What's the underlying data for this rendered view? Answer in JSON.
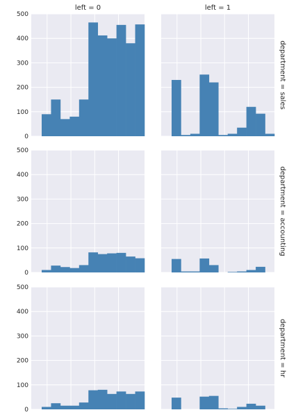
{
  "chart_data": {
    "type": "histogram-facet-grid",
    "column_titles": [
      "left = 0",
      "left = 1"
    ],
    "row_titles": [
      "department = sales",
      "department = accounting",
      "department = hr"
    ],
    "y_ticks": [
      0,
      100,
      200,
      300,
      400,
      500
    ],
    "ylim": [
      0,
      500
    ],
    "shared_x_range": [
      0,
      11
    ],
    "grid": true,
    "bar_color": "#4682b4",
    "panel_background": "#eaeaf2",
    "panels": [
      {
        "row": 0,
        "col": 0,
        "values": [
          90,
          150,
          70,
          80,
          150,
          465,
          412,
          400,
          455,
          380,
          457
        ]
      },
      {
        "row": 0,
        "col": 1,
        "values": [
          230,
          5,
          10,
          252,
          220,
          5,
          10,
          35,
          120,
          92,
          10
        ]
      },
      {
        "row": 1,
        "col": 0,
        "values": [
          10,
          28,
          22,
          18,
          30,
          82,
          75,
          78,
          80,
          65,
          58
        ]
      },
      {
        "row": 1,
        "col": 1,
        "values": [
          55,
          4,
          4,
          57,
          30,
          0,
          2,
          4,
          10,
          23,
          0
        ]
      },
      {
        "row": 2,
        "col": 0,
        "values": [
          10,
          25,
          15,
          15,
          28,
          78,
          80,
          63,
          73,
          63,
          73
        ]
      },
      {
        "row": 2,
        "col": 1,
        "values": [
          48,
          0,
          0,
          52,
          55,
          4,
          2,
          10,
          23,
          15,
          0
        ]
      }
    ]
  }
}
